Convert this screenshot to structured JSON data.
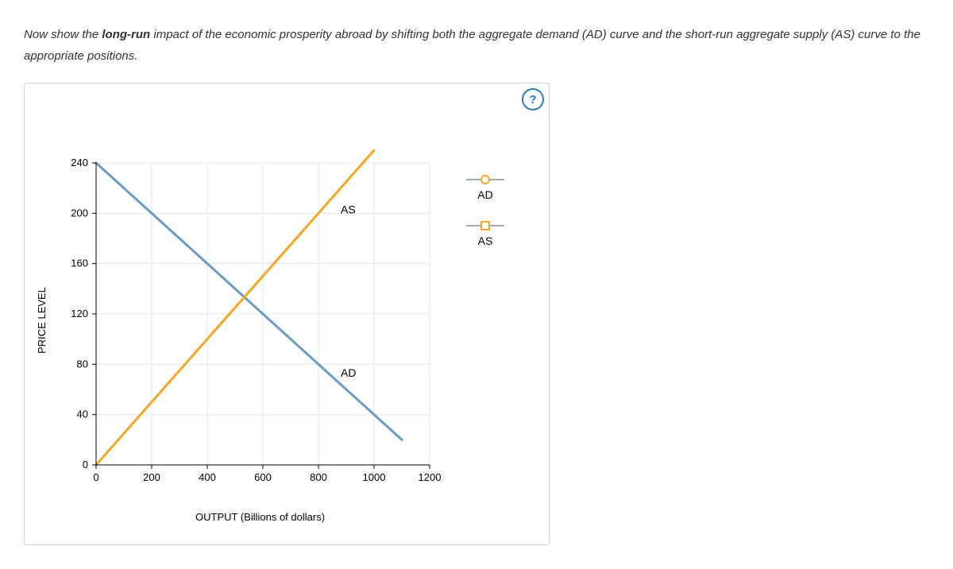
{
  "instructions": {
    "prefix": "Now show the ",
    "bold": "long-run",
    "rest": " impact of the economic prosperity abroad by shifting both the aggregate demand (AD) curve and the short-run aggregate supply (AS) curve to the appropriate positions."
  },
  "help": "?",
  "chart": {
    "type": "line",
    "xlabel": "OUTPUT (Billions of dollars)",
    "ylabel": "PRICE LEVEL",
    "xlim": [
      0,
      1200
    ],
    "ylim": [
      0,
      240
    ],
    "xticks": [
      0,
      200,
      400,
      600,
      800,
      1000,
      1200
    ],
    "yticks": [
      0,
      40,
      80,
      120,
      160,
      200,
      240
    ],
    "grid_color": "#e6e6e6",
    "axis_color": "#000000",
    "background": "#ffffff",
    "tick_fontsize": 13,
    "label_fontsize": 13,
    "series": [
      {
        "name": "AD",
        "label": "AD",
        "color": "#6a9bc3",
        "width": 3,
        "points": [
          [
            0,
            240
          ],
          [
            1100,
            20
          ]
        ],
        "label_xy": [
          880,
          70
        ]
      },
      {
        "name": "AS",
        "label": "AS",
        "color": "#f5a623",
        "width": 3,
        "points": [
          [
            0,
            0
          ],
          [
            1000,
            250
          ]
        ],
        "label_xy": [
          880,
          200
        ]
      }
    ]
  },
  "legend": {
    "items": [
      {
        "label": "AD",
        "line_color": "#a8a8a8",
        "marker_shape": "circle",
        "marker_size": 12,
        "marker_border": "#f5a623",
        "marker_fill": "#ffffff"
      },
      {
        "label": "AS",
        "line_color": "#a8a8a8",
        "marker_shape": "square",
        "marker_size": 12,
        "marker_border": "#f5a623",
        "marker_fill": "#ffffff"
      }
    ]
  }
}
